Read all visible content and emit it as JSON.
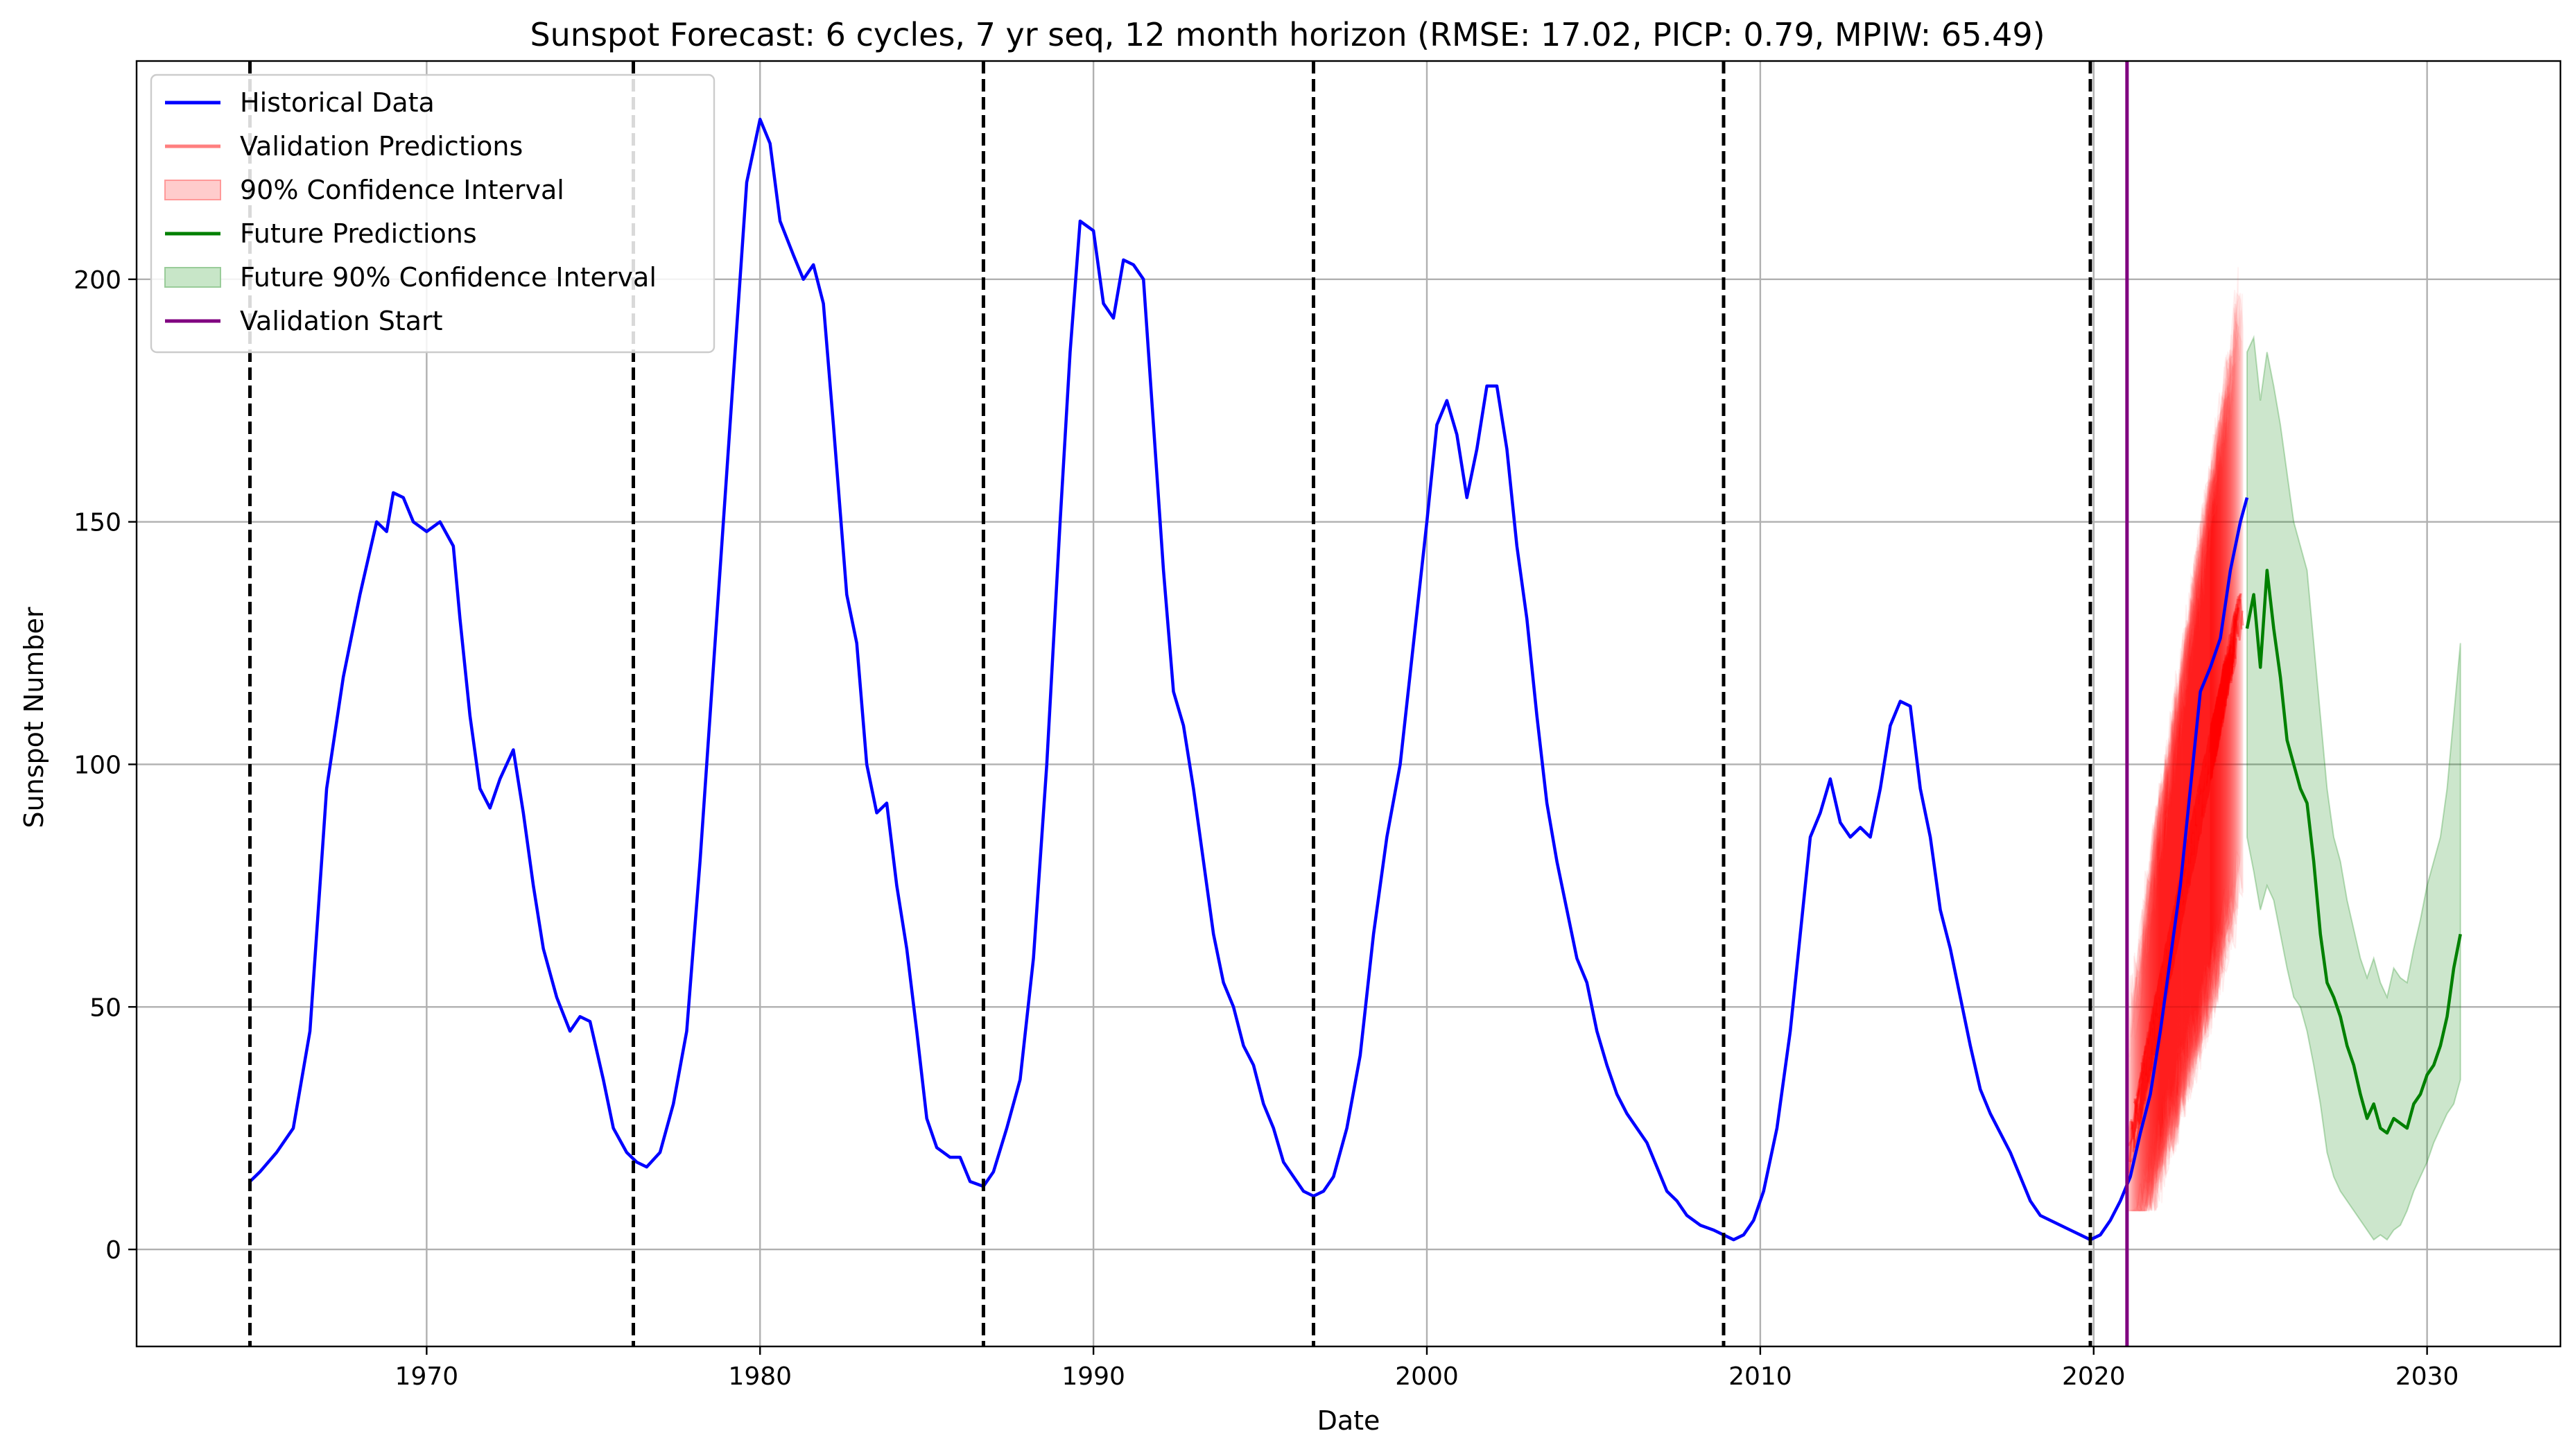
{
  "chart_data": {
    "type": "line",
    "title": "Sunspot Forecast: 6 cycles, 7 yr seq, 12 month horizon (RMSE: 17.02, PICP: 0.79, MPIW: 65.49)",
    "xlabel": "Date",
    "ylabel": "Sunspot Number",
    "xlim": [
      1961.3,
      2034.0
    ],
    "ylim": [
      -20,
      245
    ],
    "x_ticks": [
      1970,
      1980,
      1990,
      2000,
      2010,
      2020,
      2030
    ],
    "y_ticks": [
      0,
      50,
      100,
      150,
      200
    ],
    "grid": true,
    "legend_position": "top-left",
    "legend": [
      {
        "label": "Historical Data",
        "kind": "line",
        "color": "#0000ff"
      },
      {
        "label": "Validation Predictions",
        "kind": "line",
        "color": "#ff7f7f"
      },
      {
        "label": "90% Confidence Interval",
        "kind": "patch",
        "color": "#ffcccc",
        "edge": "#ff9999"
      },
      {
        "label": "Future Predictions",
        "kind": "line",
        "color": "#008000"
      },
      {
        "label": "Future 90% Confidence Interval",
        "kind": "patch",
        "color": "#c8e6c8",
        "edge": "#99cc99"
      },
      {
        "label": "Validation Start",
        "kind": "line",
        "color": "#800080"
      }
    ],
    "cycle_boundaries": [
      1964.7,
      1976.2,
      1986.7,
      1996.6,
      2008.9,
      2019.9
    ],
    "validation_start": 2021.0,
    "series": [
      {
        "name": "Historical Data",
        "color": "#0000ff",
        "points": [
          [
            1964.7,
            14
          ],
          [
            1965.0,
            16
          ],
          [
            1965.5,
            20
          ],
          [
            1966.0,
            25
          ],
          [
            1966.5,
            45
          ],
          [
            1967.0,
            95
          ],
          [
            1967.5,
            118
          ],
          [
            1968.0,
            135
          ],
          [
            1968.5,
            150
          ],
          [
            1968.8,
            148
          ],
          [
            1969.0,
            156
          ],
          [
            1969.3,
            155
          ],
          [
            1969.6,
            150
          ],
          [
            1970.0,
            148
          ],
          [
            1970.4,
            150
          ],
          [
            1970.8,
            145
          ],
          [
            1971.0,
            130
          ],
          [
            1971.3,
            110
          ],
          [
            1971.6,
            95
          ],
          [
            1971.9,
            91
          ],
          [
            1972.2,
            97
          ],
          [
            1972.6,
            103
          ],
          [
            1972.9,
            90
          ],
          [
            1973.2,
            75
          ],
          [
            1973.5,
            62
          ],
          [
            1973.9,
            52
          ],
          [
            1974.3,
            45
          ],
          [
            1974.6,
            48
          ],
          [
            1974.9,
            47
          ],
          [
            1975.3,
            35
          ],
          [
            1975.6,
            25
          ],
          [
            1976.0,
            20
          ],
          [
            1976.3,
            18
          ],
          [
            1976.6,
            17
          ],
          [
            1977.0,
            20
          ],
          [
            1977.4,
            30
          ],
          [
            1977.8,
            45
          ],
          [
            1978.2,
            80
          ],
          [
            1978.6,
            120
          ],
          [
            1979.0,
            160
          ],
          [
            1979.3,
            190
          ],
          [
            1979.6,
            220
          ],
          [
            1980.0,
            233
          ],
          [
            1980.3,
            228
          ],
          [
            1980.6,
            212
          ],
          [
            1981.0,
            205
          ],
          [
            1981.3,
            200
          ],
          [
            1981.6,
            203
          ],
          [
            1981.9,
            195
          ],
          [
            1982.2,
            170
          ],
          [
            1982.6,
            135
          ],
          [
            1982.9,
            125
          ],
          [
            1983.2,
            100
          ],
          [
            1983.5,
            90
          ],
          [
            1983.8,
            92
          ],
          [
            1984.1,
            75
          ],
          [
            1984.4,
            62
          ],
          [
            1984.7,
            45
          ],
          [
            1985.0,
            27
          ],
          [
            1985.3,
            21
          ],
          [
            1985.7,
            19
          ],
          [
            1986.0,
            19
          ],
          [
            1986.3,
            14
          ],
          [
            1986.7,
            13
          ],
          [
            1987.0,
            16
          ],
          [
            1987.4,
            25
          ],
          [
            1987.8,
            35
          ],
          [
            1988.2,
            60
          ],
          [
            1988.6,
            100
          ],
          [
            1989.0,
            150
          ],
          [
            1989.3,
            185
          ],
          [
            1989.6,
            212
          ],
          [
            1990.0,
            210
          ],
          [
            1990.3,
            195
          ],
          [
            1990.6,
            192
          ],
          [
            1990.9,
            204
          ],
          [
            1991.2,
            203
          ],
          [
            1991.5,
            200
          ],
          [
            1991.8,
            170
          ],
          [
            1992.1,
            140
          ],
          [
            1992.4,
            115
          ],
          [
            1992.7,
            108
          ],
          [
            1993.0,
            95
          ],
          [
            1993.3,
            80
          ],
          [
            1993.6,
            65
          ],
          [
            1993.9,
            55
          ],
          [
            1994.2,
            50
          ],
          [
            1994.5,
            42
          ],
          [
            1994.8,
            38
          ],
          [
            1995.1,
            30
          ],
          [
            1995.4,
            25
          ],
          [
            1995.7,
            18
          ],
          [
            1996.0,
            15
          ],
          [
            1996.3,
            12
          ],
          [
            1996.6,
            11
          ],
          [
            1996.9,
            12
          ],
          [
            1997.2,
            15
          ],
          [
            1997.6,
            25
          ],
          [
            1998.0,
            40
          ],
          [
            1998.4,
            65
          ],
          [
            1998.8,
            85
          ],
          [
            1999.2,
            100
          ],
          [
            1999.6,
            125
          ],
          [
            2000.0,
            150
          ],
          [
            2000.3,
            170
          ],
          [
            2000.6,
            175
          ],
          [
            2000.9,
            168
          ],
          [
            2001.2,
            155
          ],
          [
            2001.5,
            165
          ],
          [
            2001.8,
            178
          ],
          [
            2002.1,
            178
          ],
          [
            2002.4,
            165
          ],
          [
            2002.7,
            145
          ],
          [
            2003.0,
            130
          ],
          [
            2003.3,
            110
          ],
          [
            2003.6,
            92
          ],
          [
            2003.9,
            80
          ],
          [
            2004.2,
            70
          ],
          [
            2004.5,
            60
          ],
          [
            2004.8,
            55
          ],
          [
            2005.1,
            45
          ],
          [
            2005.4,
            38
          ],
          [
            2005.7,
            32
          ],
          [
            2006.0,
            28
          ],
          [
            2006.3,
            25
          ],
          [
            2006.6,
            22
          ],
          [
            2006.9,
            17
          ],
          [
            2007.2,
            12
          ],
          [
            2007.5,
            10
          ],
          [
            2007.8,
            7
          ],
          [
            2008.2,
            5
          ],
          [
            2008.6,
            4
          ],
          [
            2008.9,
            3
          ],
          [
            2009.2,
            2
          ],
          [
            2009.5,
            3
          ],
          [
            2009.8,
            6
          ],
          [
            2010.1,
            12
          ],
          [
            2010.5,
            25
          ],
          [
            2010.9,
            45
          ],
          [
            2011.2,
            65
          ],
          [
            2011.5,
            85
          ],
          [
            2011.8,
            90
          ],
          [
            2012.1,
            97
          ],
          [
            2012.4,
            88
          ],
          [
            2012.7,
            85
          ],
          [
            2013.0,
            87
          ],
          [
            2013.3,
            85
          ],
          [
            2013.6,
            95
          ],
          [
            2013.9,
            108
          ],
          [
            2014.2,
            113
          ],
          [
            2014.5,
            112
          ],
          [
            2014.8,
            95
          ],
          [
            2015.1,
            85
          ],
          [
            2015.4,
            70
          ],
          [
            2015.7,
            62
          ],
          [
            2016.0,
            52
          ],
          [
            2016.3,
            42
          ],
          [
            2016.6,
            33
          ],
          [
            2016.9,
            28
          ],
          [
            2017.2,
            24
          ],
          [
            2017.5,
            20
          ],
          [
            2017.8,
            15
          ],
          [
            2018.1,
            10
          ],
          [
            2018.4,
            7
          ],
          [
            2018.7,
            6
          ],
          [
            2019.0,
            5
          ],
          [
            2019.3,
            4
          ],
          [
            2019.6,
            3
          ],
          [
            2019.9,
            2
          ],
          [
            2020.2,
            3
          ],
          [
            2020.5,
            6
          ],
          [
            2020.8,
            10
          ],
          [
            2021.1,
            15
          ],
          [
            2021.4,
            24
          ],
          [
            2021.7,
            32
          ],
          [
            2022.0,
            45
          ],
          [
            2022.3,
            60
          ],
          [
            2022.6,
            75
          ],
          [
            2022.9,
            95
          ],
          [
            2023.2,
            115
          ],
          [
            2023.5,
            120
          ],
          [
            2023.8,
            126
          ],
          [
            2024.1,
            140
          ],
          [
            2024.4,
            150
          ],
          [
            2024.6,
            155
          ]
        ]
      },
      {
        "name": "Future Predictions",
        "color": "#008000",
        "points": [
          [
            2024.6,
            128
          ],
          [
            2024.8,
            135
          ],
          [
            2025.0,
            120
          ],
          [
            2025.2,
            140
          ],
          [
            2025.4,
            128
          ],
          [
            2025.6,
            118
          ],
          [
            2025.8,
            105
          ],
          [
            2026.0,
            100
          ],
          [
            2026.2,
            95
          ],
          [
            2026.4,
            92
          ],
          [
            2026.6,
            80
          ],
          [
            2026.8,
            65
          ],
          [
            2027.0,
            55
          ],
          [
            2027.2,
            52
          ],
          [
            2027.4,
            48
          ],
          [
            2027.6,
            42
          ],
          [
            2027.8,
            38
          ],
          [
            2028.0,
            32
          ],
          [
            2028.2,
            27
          ],
          [
            2028.4,
            30
          ],
          [
            2028.6,
            25
          ],
          [
            2028.8,
            24
          ],
          [
            2029.0,
            27
          ],
          [
            2029.2,
            26
          ],
          [
            2029.4,
            25
          ],
          [
            2029.6,
            30
          ],
          [
            2029.8,
            32
          ],
          [
            2030.0,
            36
          ],
          [
            2030.2,
            38
          ],
          [
            2030.4,
            42
          ],
          [
            2030.6,
            48
          ],
          [
            2030.8,
            58
          ],
          [
            2031.0,
            65
          ]
        ]
      }
    ],
    "future_interval": {
      "name": "Future 90% Confidence Interval",
      "x": [
        2024.6,
        2024.8,
        2025.0,
        2025.2,
        2025.4,
        2025.6,
        2025.8,
        2026.0,
        2026.2,
        2026.4,
        2026.6,
        2026.8,
        2027.0,
        2027.2,
        2027.4,
        2027.6,
        2027.8,
        2028.0,
        2028.2,
        2028.4,
        2028.6,
        2028.8,
        2029.0,
        2029.2,
        2029.4,
        2029.6,
        2029.8,
        2030.0,
        2030.2,
        2030.4,
        2030.6,
        2030.8,
        2031.0
      ],
      "lower": [
        85,
        78,
        70,
        75,
        72,
        65,
        58,
        52,
        50,
        45,
        38,
        30,
        20,
        15,
        12,
        10,
        8,
        6,
        4,
        2,
        3,
        2,
        4,
        5,
        8,
        12,
        15,
        18,
        22,
        25,
        28,
        30,
        35
      ],
      "upper": [
        185,
        188,
        175,
        185,
        178,
        170,
        160,
        150,
        145,
        140,
        125,
        110,
        95,
        85,
        80,
        72,
        66,
        60,
        56,
        60,
        55,
        52,
        58,
        56,
        55,
        62,
        68,
        75,
        80,
        85,
        95,
        110,
        125
      ]
    },
    "validation_intervals": {
      "name": "Validation Predictions",
      "x_range": [
        2021.0,
        2024.5
      ],
      "start_value": 18,
      "end_value": 135,
      "upper_max": 225,
      "count": 120
    }
  }
}
